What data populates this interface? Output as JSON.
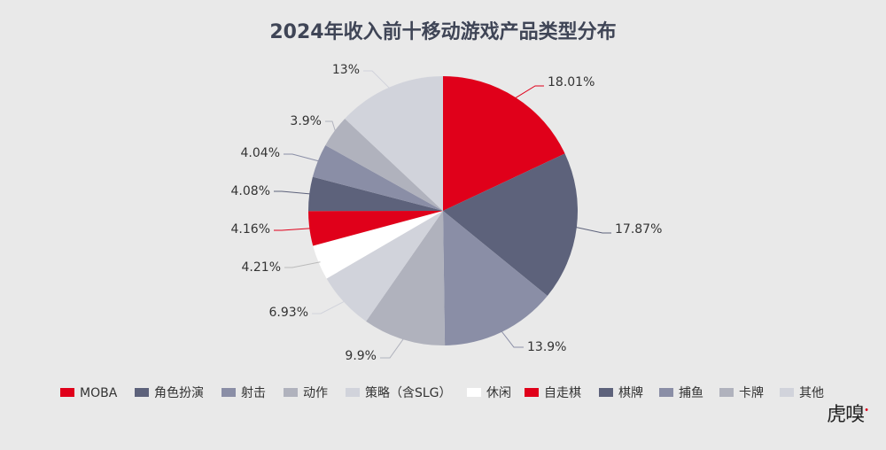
{
  "chart_data": {
    "type": "pie",
    "title": "2024年收入前十移动游戏产品类型分布",
    "start_angle_deg": 0,
    "direction": "clockwise",
    "slices": [
      {
        "name": "MOBA",
        "value": 18.01,
        "label": "18.01%",
        "color": "#e0001a"
      },
      {
        "name": "角色扮演",
        "value": 17.87,
        "label": "17.87%",
        "color": "#5d627b"
      },
      {
        "name": "射击",
        "value": 13.9,
        "label": "13.9%",
        "color": "#8a8ea6"
      },
      {
        "name": "动作",
        "value": 9.9,
        "label": "9.9%",
        "color": "#b0b2bd"
      },
      {
        "name": "策略（含SLG）",
        "value": 6.93,
        "label": "6.93%",
        "color": "#d1d3db"
      },
      {
        "name": "休闲",
        "value": 4.21,
        "label": "4.21%",
        "color": "#ffffff"
      },
      {
        "name": "自走棋",
        "value": 4.16,
        "label": "4.16%",
        "color": "#e0001a"
      },
      {
        "name": "棋牌",
        "value": 4.08,
        "label": "4.08%",
        "color": "#5d627b"
      },
      {
        "name": "捕鱼",
        "value": 4.04,
        "label": "4.04%",
        "color": "#8a8ea6"
      },
      {
        "name": "卡牌",
        "value": 3.9,
        "label": "3.9%",
        "color": "#b0b2bd"
      },
      {
        "name": "其他",
        "value": 13,
        "label": "13%",
        "color": "#d1d3db"
      }
    ],
    "legend_position": "bottom"
  },
  "logo": {
    "text": "虎嗅"
  }
}
